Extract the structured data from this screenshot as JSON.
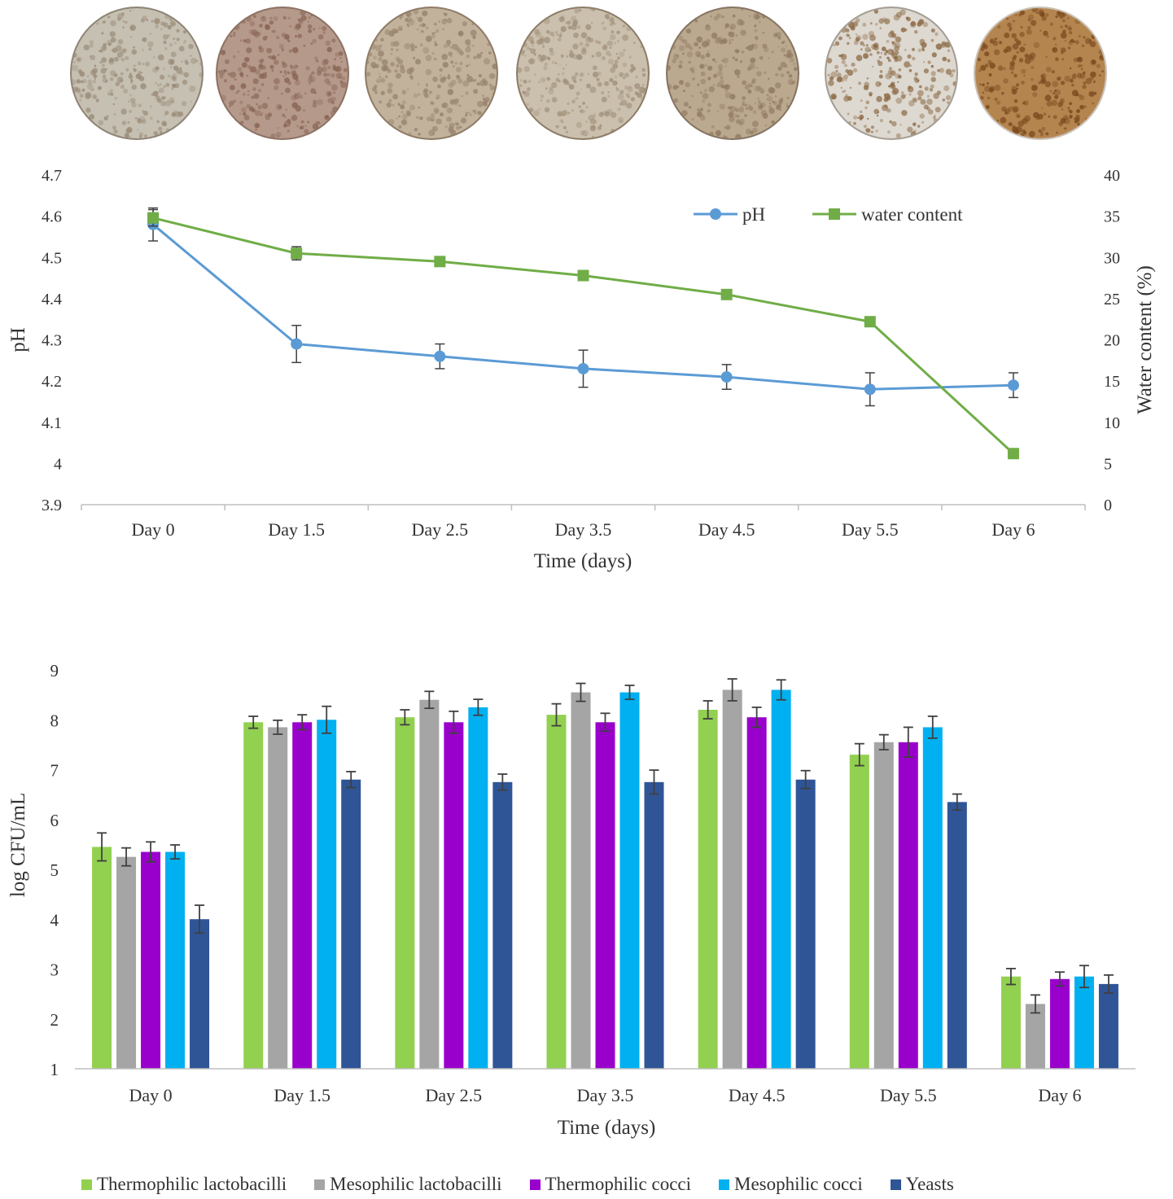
{
  "photos": {
    "items": [
      {
        "name": "day-0-sample-photo",
        "base": "#c6c0b2",
        "speck": "#9a8b78",
        "ring": "#8f8576"
      },
      {
        "name": "day-1-5-sample-photo",
        "base": "#b59a8c",
        "speck": "#8a6554",
        "ring": "#8d7264"
      },
      {
        "name": "day-2-5-sample-photo",
        "base": "#c2b29c",
        "speck": "#96826c",
        "ring": "#8f7c68"
      },
      {
        "name": "day-3-5-sample-photo",
        "base": "#cbc0ae",
        "speck": "#a1917b",
        "ring": "#8e7d68"
      },
      {
        "name": "day-4-5-sample-photo",
        "base": "#bba98f",
        "speck": "#917b63",
        "ring": "#877563"
      },
      {
        "name": "day-5-5-sample-photo",
        "base": "#ddd8d0",
        "speck": "#8c6a45",
        "ring": "#a59e94"
      },
      {
        "name": "day-6-sample-photo",
        "base": "#b58550",
        "speck": "#7a4a1e",
        "ring": "#c9c1b7"
      }
    ]
  },
  "chart_data": [
    {
      "type": "line",
      "categories": [
        "Day 0",
        "Day 1.5",
        "Day 2.5",
        "Day 3.5",
        "Day 4.5",
        "Day 5.5",
        "Day 6"
      ],
      "xlabel": "Time (days)",
      "ylabel": "pH",
      "y2label": "Water content (%)",
      "ylim": [
        3.9,
        4.7
      ],
      "yticks": [
        "3.9",
        "4",
        "4.1",
        "4.2",
        "4.3",
        "4.4",
        "4.5",
        "4.6",
        "4.7"
      ],
      "y2lim": [
        0,
        40
      ],
      "y2ticks": [
        "0",
        "5",
        "10",
        "15",
        "20",
        "25",
        "30",
        "35",
        "40"
      ],
      "grid": false,
      "legend_position": "top-right",
      "series": [
        {
          "name": "pH",
          "axis": "left",
          "color": "#5b9bd5",
          "marker": "circle",
          "values": [
            4.58,
            4.29,
            4.26,
            4.23,
            4.21,
            4.18,
            4.19
          ],
          "errors": [
            0.04,
            0.045,
            0.03,
            0.045,
            0.03,
            0.04,
            0.03
          ]
        },
        {
          "name": "water content",
          "axis": "right",
          "color": "#70ad47",
          "marker": "square",
          "values": [
            34.8,
            30.5,
            29.5,
            27.8,
            25.5,
            22.2,
            6.2
          ],
          "errors": [
            1.0,
            0.8,
            0.5,
            0.5,
            0.5,
            0.5,
            0.5
          ]
        }
      ]
    },
    {
      "type": "bar",
      "categories": [
        "Day 0",
        "Day 1.5",
        "Day 2.5",
        "Day 3.5",
        "Day 4.5",
        "Day 5.5",
        "Day 6"
      ],
      "xlabel": "Time (days)",
      "ylabel": "log CFU/mL",
      "ylim": [
        1,
        9
      ],
      "yticks": [
        "1",
        "2",
        "3",
        "4",
        "5",
        "6",
        "7",
        "8",
        "9"
      ],
      "grid": false,
      "legend_position": "bottom",
      "series": [
        {
          "name": "Thermophilic lactobacilli",
          "color": "#92d050",
          "values": [
            5.45,
            7.95,
            8.05,
            8.1,
            8.2,
            7.3,
            2.85
          ],
          "errors": [
            0.28,
            0.12,
            0.15,
            0.22,
            0.18,
            0.22,
            0.16
          ]
        },
        {
          "name": "Mesophilic lactobacilli",
          "color": "#a5a5a5",
          "values": [
            5.25,
            7.85,
            8.4,
            8.55,
            8.6,
            7.55,
            2.3
          ],
          "errors": [
            0.18,
            0.14,
            0.17,
            0.18,
            0.22,
            0.15,
            0.18
          ]
        },
        {
          "name": "Thermophilic cocci",
          "color": "#9900cc",
          "values": [
            5.35,
            7.95,
            7.95,
            7.95,
            8.05,
            7.55,
            2.8
          ],
          "errors": [
            0.2,
            0.15,
            0.22,
            0.18,
            0.2,
            0.3,
            0.14
          ]
        },
        {
          "name": "Mesophilic cocci",
          "color": "#00b0f0",
          "values": [
            5.35,
            8.0,
            8.25,
            8.55,
            8.6,
            7.85,
            2.85
          ],
          "errors": [
            0.14,
            0.27,
            0.16,
            0.14,
            0.2,
            0.22,
            0.22
          ]
        },
        {
          "name": "Yeasts",
          "color": "#2f5597",
          "values": [
            4.0,
            6.8,
            6.75,
            6.75,
            6.8,
            6.35,
            2.7
          ],
          "errors": [
            0.28,
            0.16,
            0.16,
            0.24,
            0.18,
            0.16,
            0.18
          ]
        }
      ]
    }
  ]
}
